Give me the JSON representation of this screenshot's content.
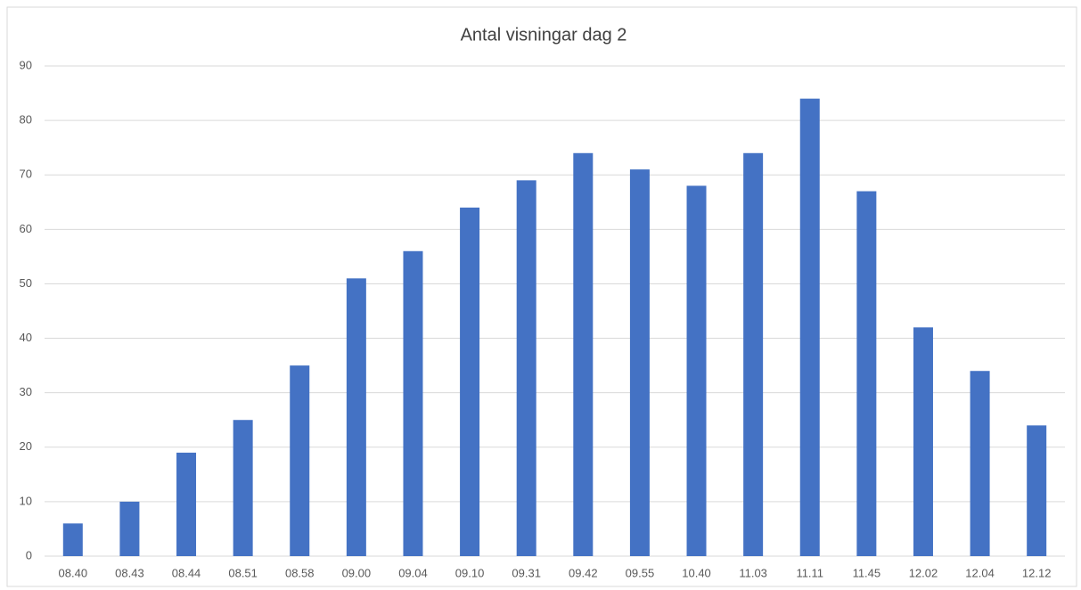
{
  "chart_data": {
    "type": "bar",
    "title": "Antal visningar dag 2",
    "categories": [
      "08.40",
      "08.43",
      "08.44",
      "08.51",
      "08.58",
      "09.00",
      "09.04",
      "09.10",
      "09.31",
      "09.42",
      "09.55",
      "10.40",
      "11.03",
      "11.11",
      "11.45",
      "12.02",
      "12.04",
      "12.12"
    ],
    "values": [
      6,
      10,
      19,
      25,
      35,
      51,
      56,
      64,
      69,
      74,
      71,
      68,
      74,
      84,
      67,
      42,
      34,
      24
    ],
    "color": "#4472c4",
    "ylim": [
      0,
      90
    ],
    "yticks": [
      0,
      10,
      20,
      30,
      40,
      50,
      60,
      70,
      80,
      90
    ],
    "grid": true
  }
}
